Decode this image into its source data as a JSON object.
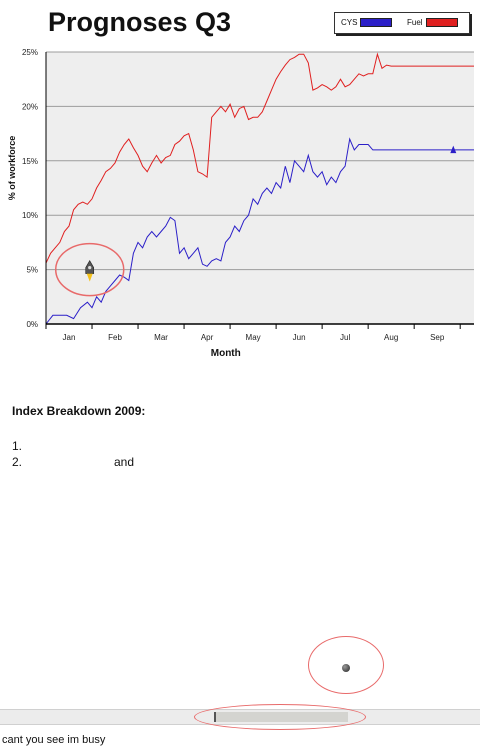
{
  "page": {
    "title": "Prognoses Q3",
    "breakdown_title": "Index Breakdown 2009:",
    "list": [
      {
        "num": "1.",
        "text": ""
      },
      {
        "num": "2.",
        "text": "and"
      }
    ],
    "status_text": "cant you see im busy"
  },
  "legend": {
    "items": [
      {
        "label": "CYS",
        "color": "#2b1fc8"
      },
      {
        "label": "Fuel",
        "color": "#e02020"
      }
    ]
  },
  "chart_data": {
    "type": "line",
    "title": "Prognoses Q3",
    "xlabel": "Month",
    "ylabel": "% of workforce",
    "categories": [
      "Jan",
      "Feb",
      "Mar",
      "Apr",
      "May",
      "Jun",
      "Jul",
      "Aug",
      "Sep"
    ],
    "yticks": [
      "0%",
      "5%",
      "10%",
      "15%",
      "20%",
      "25%"
    ],
    "ylim": [
      0,
      25
    ],
    "xlim": [
      0,
      9.3
    ],
    "grid": true,
    "legend_position": "top-right",
    "series": [
      {
        "name": "Fuel",
        "color": "#e02020",
        "x": [
          0,
          0.1,
          0.2,
          0.3,
          0.4,
          0.5,
          0.6,
          0.7,
          0.8,
          0.9,
          1.0,
          1.1,
          1.2,
          1.3,
          1.4,
          1.5,
          1.6,
          1.7,
          1.8,
          1.9,
          2.0,
          2.1,
          2.2,
          2.3,
          2.4,
          2.5,
          2.6,
          2.7,
          2.8,
          2.9,
          3.0,
          3.1,
          3.2,
          3.3,
          3.4,
          3.5,
          3.6,
          3.7,
          3.8,
          3.9,
          4.0,
          4.1,
          4.2,
          4.3,
          4.4,
          4.5,
          4.6,
          4.7,
          4.8,
          4.9,
          5.0,
          5.1,
          5.2,
          5.3,
          5.4,
          5.5,
          5.6,
          5.7,
          5.8,
          5.9,
          6.0,
          6.1,
          6.2,
          6.3,
          6.4,
          6.5,
          6.6,
          6.7,
          6.8,
          6.9,
          7.0,
          7.1,
          7.2,
          7.3,
          7.4,
          7.5,
          7.6,
          7.7,
          7.8,
          7.9,
          8.0,
          8.1,
          8.2,
          8.3,
          8.4,
          8.5,
          8.6,
          8.7,
          8.8,
          8.9,
          9.0,
          9.1,
          9.2,
          9.3
        ],
        "y": [
          5.6,
          6.5,
          7.0,
          7.5,
          8.5,
          9.0,
          10.5,
          11.0,
          11.2,
          11.0,
          11.5,
          12.5,
          13.2,
          14.0,
          14.3,
          14.8,
          15.8,
          16.5,
          17.0,
          16.2,
          15.5,
          14.5,
          14.0,
          14.8,
          15.5,
          14.8,
          15.3,
          15.5,
          16.5,
          16.8,
          17.3,
          17.5,
          16.0,
          14.0,
          13.8,
          13.5,
          19.0,
          19.5,
          20.0,
          19.5,
          20.2,
          19.0,
          19.8,
          20.0,
          18.8,
          19.0,
          19.0,
          19.5,
          20.5,
          21.5,
          22.5,
          23.2,
          23.8,
          24.3,
          24.5,
          24.8,
          24.8,
          24.0,
          21.5,
          21.7,
          22.0,
          21.8,
          21.5,
          21.8,
          22.5,
          21.8,
          22.0,
          22.5,
          23.0,
          22.8,
          23.0,
          23.0,
          24.8,
          23.5,
          23.8,
          23.7,
          23.7,
          23.7,
          23.7,
          23.7,
          23.7,
          23.7,
          23.7,
          23.7,
          23.7,
          23.7,
          23.7,
          23.7,
          23.7,
          23.7,
          23.7,
          23.7,
          23.7,
          23.7
        ]
      },
      {
        "name": "CYS",
        "color": "#2b1fc8",
        "x": [
          0,
          0.15,
          0.3,
          0.45,
          0.6,
          0.75,
          0.9,
          1.0,
          1.1,
          1.2,
          1.3,
          1.4,
          1.5,
          1.6,
          1.7,
          1.8,
          1.9,
          2.0,
          2.1,
          2.2,
          2.3,
          2.4,
          2.5,
          2.6,
          2.7,
          2.8,
          2.9,
          3.0,
          3.1,
          3.2,
          3.3,
          3.4,
          3.5,
          3.6,
          3.7,
          3.8,
          3.9,
          4.0,
          4.1,
          4.2,
          4.3,
          4.4,
          4.5,
          4.6,
          4.7,
          4.8,
          4.9,
          5.0,
          5.1,
          5.2,
          5.3,
          5.4,
          5.5,
          5.6,
          5.7,
          5.8,
          5.9,
          6.0,
          6.1,
          6.2,
          6.3,
          6.4,
          6.5,
          6.6,
          6.7,
          6.8,
          6.9,
          7.0,
          7.1,
          7.2,
          7.3,
          7.4,
          7.5,
          7.6,
          7.7,
          7.8,
          7.9,
          8.0,
          8.1,
          8.2,
          8.3,
          8.4,
          8.5,
          8.6,
          8.7,
          8.8,
          8.9,
          9.0,
          9.1,
          9.2,
          9.3
        ],
        "y": [
          0,
          0.8,
          0.8,
          0.8,
          0.5,
          1.5,
          2.0,
          1.5,
          2.5,
          2.0,
          3.0,
          3.5,
          4.0,
          4.5,
          4.3,
          4.0,
          6.5,
          7.5,
          7.0,
          8.0,
          8.5,
          8.0,
          8.5,
          9.0,
          9.8,
          9.5,
          6.5,
          7.0,
          6.0,
          6.5,
          7.0,
          5.5,
          5.3,
          5.8,
          6.0,
          5.8,
          7.5,
          8.0,
          9.0,
          8.5,
          9.5,
          10.0,
          11.5,
          11.0,
          12.0,
          12.5,
          12.0,
          13.0,
          12.5,
          14.5,
          13.0,
          15.0,
          14.5,
          14.0,
          15.5,
          14.0,
          13.5,
          14.0,
          12.8,
          13.5,
          13.0,
          14.0,
          14.5,
          17.0,
          16.0,
          16.5,
          16.5,
          16.5,
          16.0,
          16.0,
          16.0,
          16.0,
          16.0,
          16.0,
          16.0,
          16.0,
          16.0,
          16.0,
          16.0,
          16.0,
          16.0,
          16.0,
          16.0,
          16.0,
          16.0,
          16.0,
          16.0,
          16.0,
          16.0,
          16.0,
          16.0
        ]
      }
    ]
  }
}
